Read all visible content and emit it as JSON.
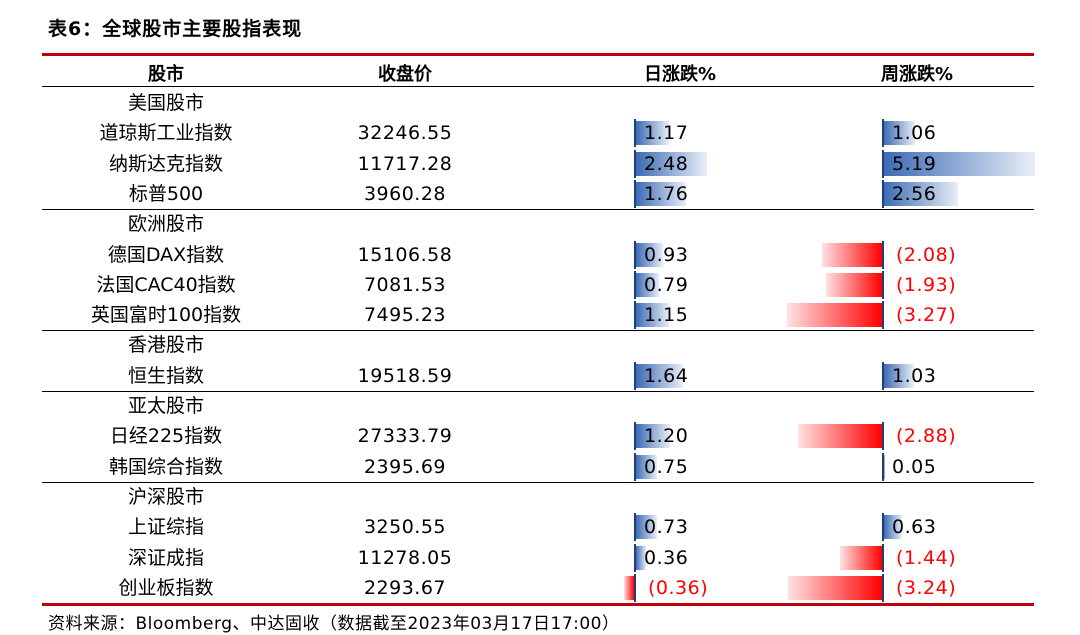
{
  "title": "表6：全球股市主要股指表现",
  "headers": {
    "market": "股市",
    "close": "收盘价",
    "daily": "日涨跌%",
    "weekly": "周涨跌%"
  },
  "groups": [
    {
      "name": "美国股市",
      "rows": [
        {
          "index": "道琼斯工业指数",
          "close": "32246.55",
          "daily": 1.17,
          "daily_text": "1.17",
          "weekly": 1.06,
          "weekly_text": "1.06"
        },
        {
          "index": "纳斯达克指数",
          "close": "11717.28",
          "daily": 2.48,
          "daily_text": "2.48",
          "weekly": 5.19,
          "weekly_text": "5.19"
        },
        {
          "index": "标普500",
          "close": "3960.28",
          "daily": 1.76,
          "daily_text": "1.76",
          "weekly": 2.56,
          "weekly_text": "2.56"
        }
      ]
    },
    {
      "name": "欧洲股市",
      "rows": [
        {
          "index": "德国DAX指数",
          "close": "15106.58",
          "daily": 0.93,
          "daily_text": "0.93",
          "weekly": -2.08,
          "weekly_text": "(2.08)"
        },
        {
          "index": "法国CAC40指数",
          "close": "7081.53",
          "daily": 0.79,
          "daily_text": "0.79",
          "weekly": -1.93,
          "weekly_text": "(1.93)"
        },
        {
          "index": "英国富时100指数",
          "close": "7495.23",
          "daily": 1.15,
          "daily_text": "1.15",
          "weekly": -3.27,
          "weekly_text": "(3.27)"
        }
      ]
    },
    {
      "name": "香港股市",
      "rows": [
        {
          "index": "恒生指数",
          "close": "19518.59",
          "daily": 1.64,
          "daily_text": "1.64",
          "weekly": 1.03,
          "weekly_text": "1.03"
        }
      ]
    },
    {
      "name": "亚太股市",
      "rows": [
        {
          "index": "日经225指数",
          "close": "27333.79",
          "daily": 1.2,
          "daily_text": "1.20",
          "weekly": -2.88,
          "weekly_text": "(2.88)"
        },
        {
          "index": "韩国综合指数",
          "close": "2395.69",
          "daily": 0.75,
          "daily_text": "0.75",
          "weekly": 0.05,
          "weekly_text": "0.05"
        }
      ]
    },
    {
      "name": "沪深股市",
      "rows": [
        {
          "index": "上证综指",
          "close": "3250.55",
          "daily": 0.73,
          "daily_text": "0.73",
          "weekly": 0.63,
          "weekly_text": "0.63"
        },
        {
          "index": "深证成指",
          "close": "11278.05",
          "daily": 0.36,
          "daily_text": "0.36",
          "weekly": -1.44,
          "weekly_text": "(1.44)"
        },
        {
          "index": "创业板指数",
          "close": "2293.67",
          "daily": -0.36,
          "daily_text": "(0.36)",
          "weekly": -3.24,
          "weekly_text": "(3.24)"
        }
      ]
    }
  ],
  "footer": "资料来源：Bloomberg、中达固收（数据截至2023年03月17日17:00）",
  "colors": {
    "positive_bar": "#3d6bb4",
    "negative_bar": "#ff0000",
    "negative_text": "#ff0000",
    "rule_red": "#c0000b"
  }
}
